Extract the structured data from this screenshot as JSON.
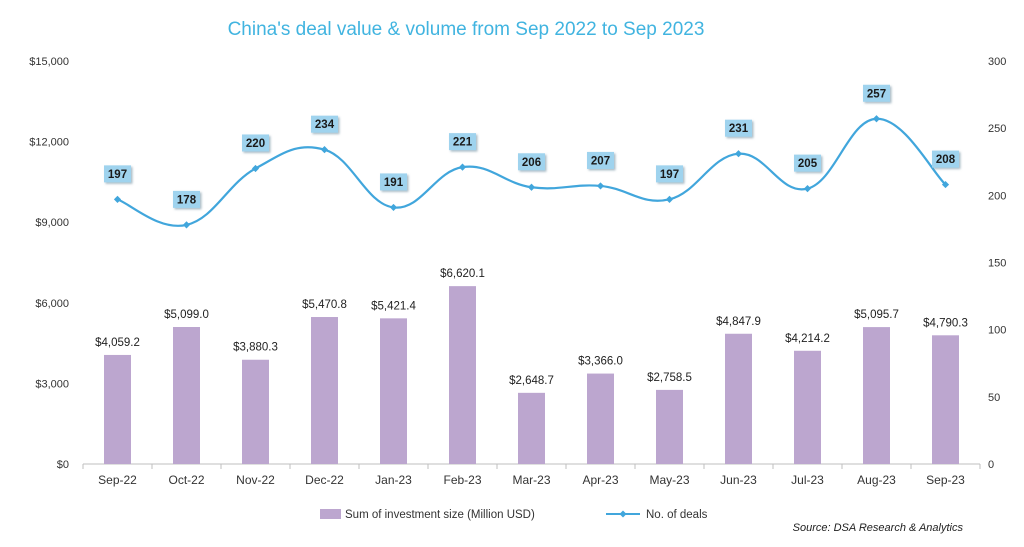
{
  "chart_data": {
    "type": "bar+line",
    "title": "China's deal value & volume from Sep 2022 to Sep 2023",
    "categories": [
      "Sep-22",
      "Oct-22",
      "Nov-22",
      "Dec-22",
      "Jan-23",
      "Feb-23",
      "Mar-23",
      "Apr-23",
      "May-23",
      "Jun-23",
      "Jul-23",
      "Aug-23",
      "Sep-23"
    ],
    "series": [
      {
        "name": "Sum of investment size (Million USD)",
        "type": "bar",
        "axis": "left",
        "color": "#bca6cf",
        "values": [
          4059.2,
          5099.0,
          3880.3,
          5470.8,
          5421.4,
          6620.1,
          2648.7,
          3366.0,
          2758.5,
          4847.9,
          4214.2,
          5095.7,
          4790.3
        ],
        "labels": [
          "$4,059.2",
          "$5,099.0",
          "$3,880.3",
          "$5,470.8",
          "$5,421.4",
          "$6,620.1",
          "$2,648.7",
          "$3,366.0",
          "$2,758.5",
          "$4,847.9",
          "$4,214.2",
          "$5,095.7",
          "$4,790.3"
        ]
      },
      {
        "name": "No. of deals",
        "type": "line",
        "axis": "right",
        "color": "#41a6dc",
        "label_box_color": "#9fd3ee",
        "values": [
          197,
          178,
          220,
          234,
          191,
          221,
          206,
          207,
          197,
          231,
          205,
          257,
          208
        ],
        "labels": [
          "197",
          "178",
          "220",
          "234",
          "191",
          "221",
          "206",
          "207",
          "197",
          "231",
          "205",
          "257",
          "208"
        ]
      }
    ],
    "y_left": {
      "range": [
        0,
        15000
      ],
      "ticks": [
        "$0",
        "$3,000",
        "$6,000",
        "$9,000",
        "$12,000",
        "$15,000"
      ],
      "values": [
        0,
        3000,
        6000,
        9000,
        12000,
        15000
      ]
    },
    "y_right": {
      "range": [
        0,
        300
      ],
      "ticks": [
        "0",
        "50",
        "100",
        "150",
        "200",
        "250",
        "300"
      ],
      "values": [
        0,
        50,
        100,
        150,
        200,
        250,
        300
      ]
    },
    "legend_position": "bottom",
    "grid": false,
    "source": "Source: DSA Research & Analytics"
  }
}
